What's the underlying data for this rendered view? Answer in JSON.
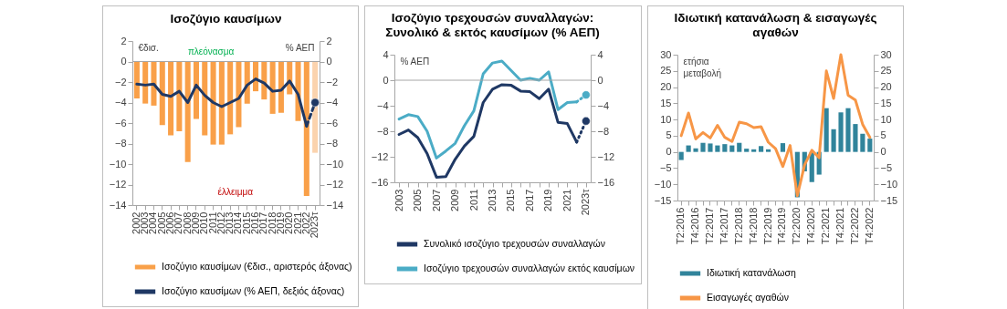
{
  "chart_data": [
    {
      "type": "bar",
      "title": "Ισοζύγιο καυσίμων",
      "ylabel": "€δισ.",
      "y2label": "% ΑΕΠ",
      "categories": [
        "2002",
        "2003",
        "2004",
        "2005",
        "2006",
        "2007",
        "2008",
        "2009",
        "2010",
        "2011",
        "2012",
        "2013",
        "2014",
        "2015",
        "2016",
        "2017",
        "2018",
        "2019",
        "2020",
        "2021",
        "2022",
        "2023τ"
      ],
      "series": [
        {
          "name": "Ισοζύγιο καυσίμων (€δισ., αριστερός άξονας)",
          "color": "#f9a049",
          "colors": [
            "#f9a049",
            "#f9a049",
            "#f9a049",
            "#f9a049",
            "#f9a049",
            "#f9a049",
            "#f9a049",
            "#f9a049",
            "#f9a049",
            "#f9a049",
            "#f9a049",
            "#f9a049",
            "#f9a049",
            "#f9a049",
            "#f9a049",
            "#f9a049",
            "#f9a049",
            "#f9a049",
            "#f9a049",
            "#f9a049",
            "#f9a049",
            "#fbd3ae"
          ],
          "values": [
            -3.6,
            -4.1,
            -4.3,
            -6.2,
            -7.2,
            -6.8,
            -9.8,
            -5.6,
            -7.2,
            -8.1,
            -8.1,
            -7.1,
            -6.4,
            -4.1,
            -2.9,
            -3.7,
            -5.1,
            -5.0,
            -3.2,
            -5.8,
            -13.1,
            -8.9
          ]
        },
        {
          "name": "Ισοζύγιο καυσίμων (% ΑΕΠ, δεξιός άξονας)",
          "type": "line",
          "color": "#1f3864",
          "values": [
            -2.2,
            -2.3,
            -2.2,
            -3.2,
            -3.4,
            -2.9,
            -4.0,
            -2.3,
            -3.3,
            -4.0,
            -4.4,
            -4.0,
            -3.6,
            -2.3,
            -1.7,
            -2.1,
            -2.9,
            -2.8,
            -1.9,
            -3.2,
            -6.3,
            null
          ]
        },
        {
          "type": "line",
          "color": "#1f3864",
          "line_style": "dashed",
          "values": [
            null,
            null,
            null,
            null,
            null,
            null,
            null,
            null,
            null,
            null,
            null,
            null,
            null,
            null,
            null,
            null,
            null,
            null,
            null,
            null,
            -6.3,
            -4.0
          ]
        },
        {
          "type": "scatter",
          "color": "#1f3864",
          "marker": "circle",
          "values": [
            null,
            null,
            null,
            null,
            null,
            null,
            null,
            null,
            null,
            null,
            null,
            null,
            null,
            null,
            null,
            null,
            null,
            null,
            null,
            null,
            null,
            -4.0
          ]
        }
      ],
      "ylim": [
        -14,
        2
      ],
      "yticks": [
        -14,
        -12,
        -10,
        -8,
        -6,
        -4,
        -2,
        0,
        2
      ],
      "y2lim": [
        -14,
        2
      ],
      "y2ticks": [
        -14,
        -12,
        -10,
        -8,
        -6,
        -4,
        -2,
        0,
        2
      ],
      "ref_lines": [
        {
          "axis": "y",
          "value": 0,
          "color": "#a6a6a6"
        }
      ],
      "annotations": [
        "πλεόνασμα",
        "έλλειμμα"
      ],
      "legend": "bottom"
    },
    {
      "type": "line",
      "title": "Ισοζύγιο τρεχουσών συναλλαγών: Συνολικό & εκτός καυσίμων (% ΑΕΠ)",
      "ylabel": "% ΑΕΠ",
      "categories": [
        "2003",
        null,
        "2005",
        null,
        "2007",
        null,
        "2009",
        null,
        "2011",
        null,
        "2013",
        null,
        "2015",
        null,
        "2017",
        null,
        "2019",
        null,
        "2021",
        null,
        "2023τ"
      ],
      "series": [
        {
          "name": "Συνολικό ισοζύγιο τρεχουσών συναλλαγών",
          "color": "#1f3864",
          "values": [
            -8.5,
            -7.8,
            -9.0,
            -11.5,
            -15.2,
            -15.1,
            -12.4,
            -10.3,
            -8.8,
            -3.5,
            -1.4,
            -0.7,
            -0.8,
            -1.7,
            -1.8,
            -2.9,
            -1.4,
            -6.6,
            -6.8,
            -9.7,
            null
          ]
        },
        {
          "name": "Ισοζύγιο τρεχουσών συναλλαγών εκτός καυσίμων",
          "color": "#4bacc6",
          "values": [
            -6.1,
            -5.4,
            -5.7,
            -8.0,
            -12.2,
            -11.1,
            -9.9,
            -7.1,
            -4.8,
            1.0,
            2.7,
            3.0,
            1.5,
            0.0,
            0.3,
            0.0,
            1.3,
            -4.6,
            -3.5,
            -3.4,
            null
          ]
        },
        {
          "color": "#1f3864",
          "line_style": "dotted",
          "values": [
            null,
            null,
            null,
            null,
            null,
            null,
            null,
            null,
            null,
            null,
            null,
            null,
            null,
            null,
            null,
            null,
            null,
            null,
            null,
            -9.7,
            -6.4
          ]
        },
        {
          "color": "#4bacc6",
          "line_style": "dotted",
          "values": [
            null,
            null,
            null,
            null,
            null,
            null,
            null,
            null,
            null,
            null,
            null,
            null,
            null,
            null,
            null,
            null,
            null,
            null,
            null,
            -3.4,
            -2.3
          ]
        },
        {
          "type": "scatter",
          "color": "#1f3864",
          "marker": "circle",
          "values": [
            null,
            null,
            null,
            null,
            null,
            null,
            null,
            null,
            null,
            null,
            null,
            null,
            null,
            null,
            null,
            null,
            null,
            null,
            null,
            null,
            -6.4
          ]
        },
        {
          "type": "scatter",
          "color": "#4bacc6",
          "marker": "circle",
          "values": [
            null,
            null,
            null,
            null,
            null,
            null,
            null,
            null,
            null,
            null,
            null,
            null,
            null,
            null,
            null,
            null,
            null,
            null,
            null,
            null,
            -2.3
          ]
        }
      ],
      "ylim": [
        -16,
        4
      ],
      "yticks": [
        -16,
        -12,
        -8,
        -4,
        0,
        4
      ],
      "y2lim": [
        -16,
        4
      ],
      "y2ticks": [
        -16,
        -12,
        -8,
        -4,
        0,
        4
      ],
      "ref_lines": [
        {
          "axis": "y",
          "value": 0,
          "color": "#a6a6a6"
        }
      ],
      "legend": "bottom"
    },
    {
      "type": "bar",
      "title": "Ιδιωτική κατανάλωση & εισαγωγές αγαθών",
      "ylabel": "ετήσια μεταβολή",
      "categories": [
        "Τ2:2016",
        null,
        "Τ4:2016",
        null,
        "Τ2:2017",
        null,
        "Τ4:2017",
        null,
        "Τ2:2018",
        null,
        "Τ4:2018",
        null,
        "Τ2:2019",
        null,
        "Τ4:2019",
        null,
        "Τ2:2020",
        null,
        "Τ4:2020",
        null,
        "Τ2:2021",
        null,
        "Τ4:2021",
        null,
        "Τ2:2022",
        null,
        "Τ4:2022"
      ],
      "series": [
        {
          "name": "Ιδιωτική κατανάλωση",
          "color": "#31849b",
          "values": [
            -2.5,
            2,
            1.1,
            2.8,
            2.6,
            2,
            2.4,
            2,
            2.8,
            1,
            0.8,
            1.8,
            0.8,
            null,
            2.7,
            0,
            -14,
            -6,
            -9.3,
            -7,
            13.5,
            7,
            12.2,
            13.5,
            8.6,
            5.6,
            4.1
          ]
        },
        {
          "name": "Εισαγωγές αγαθών",
          "type": "line",
          "color": "#f79646",
          "values": [
            5,
            12,
            4,
            6,
            4.3,
            8.2,
            4.5,
            3.2,
            9.2,
            8.7,
            7.5,
            7.8,
            3,
            1,
            -4.5,
            2,
            -13.5,
            -4,
            0.5,
            -1.8,
            25,
            16.5,
            30,
            17.5,
            16,
            8.5,
            4.5
          ]
        }
      ],
      "ylim": [
        -15,
        30
      ],
      "yticks": [
        -15,
        -10,
        -5,
        0,
        5,
        10,
        15,
        20,
        25,
        30
      ],
      "y2lim": [
        -15,
        30
      ],
      "y2ticks": [
        -15,
        -10,
        -5,
        0,
        5,
        10,
        15,
        20,
        25,
        30
      ],
      "legend": "bottom"
    }
  ]
}
